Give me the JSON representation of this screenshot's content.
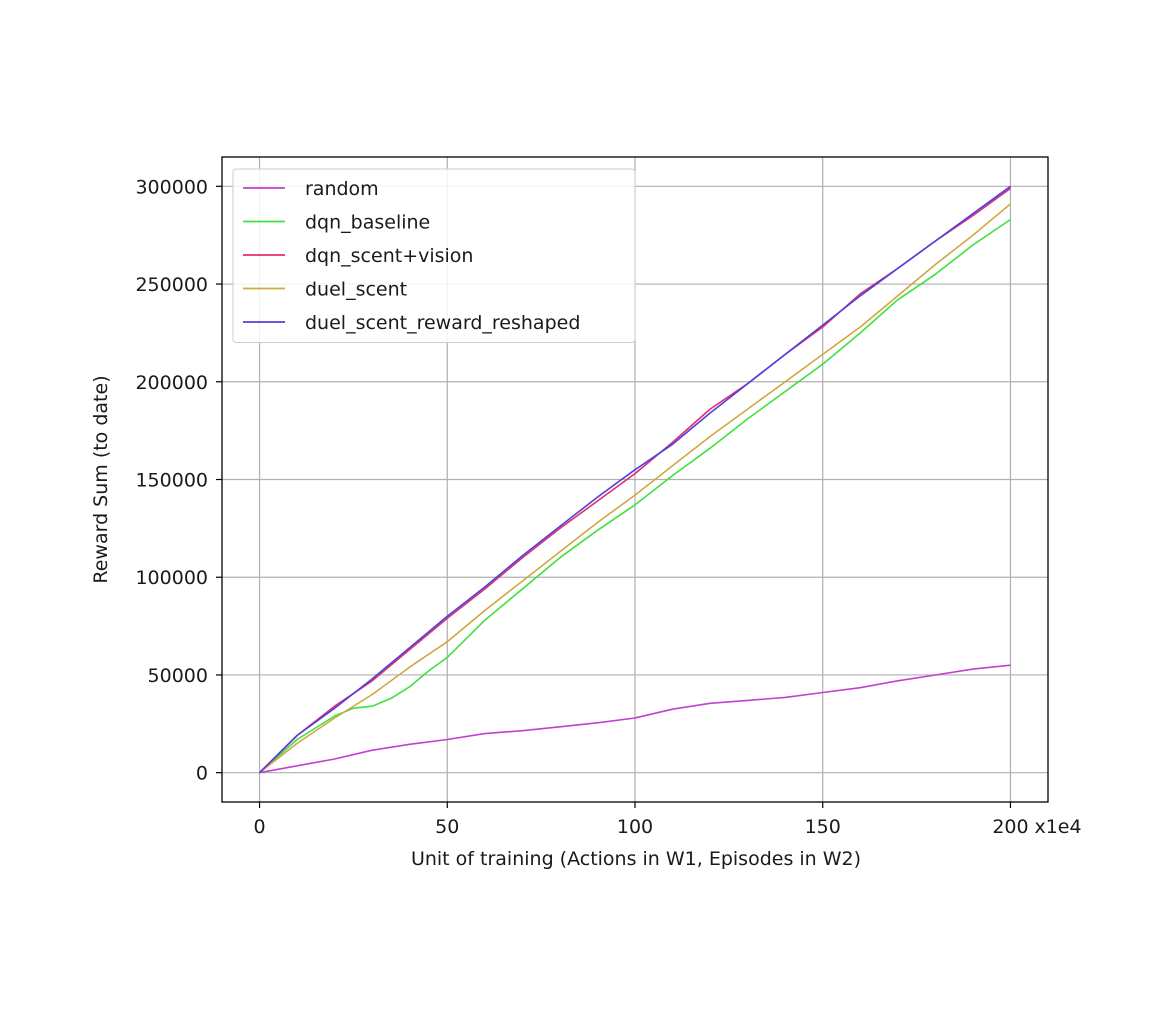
{
  "chart_data": {
    "type": "line",
    "title": "",
    "xlabel": "Unit of training (Actions in W1, Episodes in W2)",
    "ylabel": "Reward Sum (to date)",
    "x_offset_label": "x1e4",
    "xlim": [
      -10,
      210
    ],
    "ylim": [
      -15000,
      315000
    ],
    "xticks": [
      0,
      50,
      100,
      150,
      200
    ],
    "yticks": [
      0,
      50000,
      100000,
      150000,
      200000,
      250000,
      300000
    ],
    "grid": true,
    "legend_position": "upper-left",
    "series": [
      {
        "name": "random",
        "color": "#c040d0",
        "x": [
          0,
          10,
          20,
          30,
          40,
          50,
          60,
          70,
          80,
          90,
          100,
          110,
          120,
          130,
          140,
          150,
          160,
          170,
          180,
          190,
          200
        ],
        "y": [
          0,
          3500,
          7000,
          11500,
          14500,
          17000,
          20000,
          21500,
          23500,
          25500,
          28000,
          32500,
          35500,
          37000,
          38500,
          41000,
          43500,
          47000,
          50000,
          53000,
          55000
        ]
      },
      {
        "name": "dqn_baseline",
        "color": "#40e040",
        "x": [
          0,
          10,
          20,
          25,
          30,
          35,
          40,
          45,
          50,
          60,
          70,
          80,
          90,
          100,
          110,
          120,
          130,
          140,
          150,
          160,
          170,
          180,
          190,
          200
        ],
        "y": [
          0,
          17000,
          29000,
          33000,
          34000,
          38000,
          44000,
          52000,
          59000,
          78000,
          94000,
          110000,
          124000,
          137000,
          152000,
          166000,
          181000,
          195000,
          209000,
          225000,
          242000,
          255000,
          270000,
          283000
        ]
      },
      {
        "name": "dqn_scent+vision",
        "color": "#e0306a",
        "x": [
          0,
          10,
          20,
          30,
          40,
          50,
          60,
          70,
          80,
          90,
          100,
          110,
          120,
          130,
          140,
          150,
          160,
          170,
          180,
          190,
          200
        ],
        "y": [
          0,
          19000,
          34000,
          47000,
          63000,
          79000,
          94000,
          110000,
          125000,
          139000,
          153000,
          169000,
          186000,
          199000,
          214000,
          228000,
          245000,
          258000,
          272000,
          285000,
          299000
        ]
      },
      {
        "name": "duel_scent",
        "color": "#d0a840",
        "x": [
          0,
          10,
          20,
          30,
          40,
          50,
          60,
          70,
          80,
          90,
          100,
          110,
          120,
          130,
          140,
          150,
          160,
          170,
          180,
          190,
          200
        ],
        "y": [
          0,
          15000,
          28000,
          40000,
          54000,
          67000,
          83000,
          98000,
          113000,
          128000,
          142000,
          157000,
          172000,
          186000,
          200000,
          214000,
          228000,
          244000,
          260000,
          275000,
          291000
        ]
      },
      {
        "name": "duel_scent_reward_reshaped",
        "color": "#5040e0",
        "x": [
          0,
          10,
          20,
          30,
          40,
          50,
          60,
          70,
          80,
          90,
          100,
          110,
          120,
          130,
          140,
          150,
          160,
          170,
          180,
          190,
          200
        ],
        "y": [
          0,
          19000,
          33000,
          48000,
          64000,
          80000,
          95000,
          111000,
          126000,
          141000,
          155000,
          168000,
          184000,
          199000,
          214000,
          229000,
          244000,
          258000,
          272000,
          286000,
          300000
        ]
      }
    ]
  }
}
